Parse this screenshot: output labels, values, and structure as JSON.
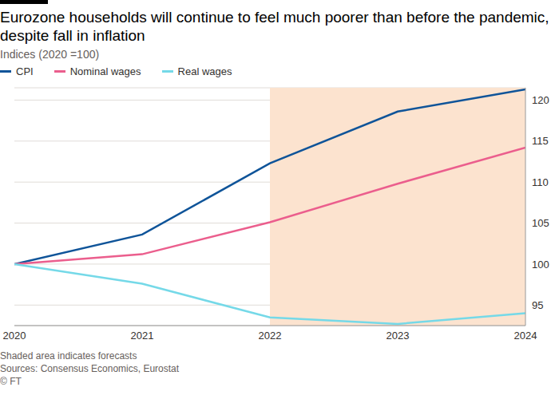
{
  "chart_data": {
    "type": "line",
    "title": "Eurozone households will continue to feel much poorer than before the pandemic, despite fall in inflation",
    "subtitle": "Indices (2020 =100)",
    "x": [
      2020,
      2021,
      2022,
      2023,
      2024
    ],
    "series": [
      {
        "name": "CPI",
        "color": "#0f5499",
        "values": [
          100,
          103.6,
          112.3,
          118.6,
          121.3
        ]
      },
      {
        "name": "Nominal wages",
        "color": "#eb5e8d",
        "values": [
          100,
          101.2,
          105.1,
          109.8,
          114.2
        ]
      },
      {
        "name": "Real wages",
        "color": "#75d9e8",
        "values": [
          100,
          97.6,
          93.5,
          92.7,
          94.0
        ]
      }
    ],
    "xlim": [
      2020,
      2024
    ],
    "xticks": [
      2020,
      2021,
      2022,
      2023,
      2024
    ],
    "ylim": [
      92.5,
      121.5
    ],
    "yticks": [
      95,
      100,
      105,
      110,
      115,
      120
    ],
    "grid": true,
    "legend": "top left",
    "shaded_range": [
      2022,
      2024
    ],
    "notes": [
      "Shaded area indicates forecasts",
      "Sources: Consensus Economics, Eurostat",
      "© FT"
    ]
  }
}
